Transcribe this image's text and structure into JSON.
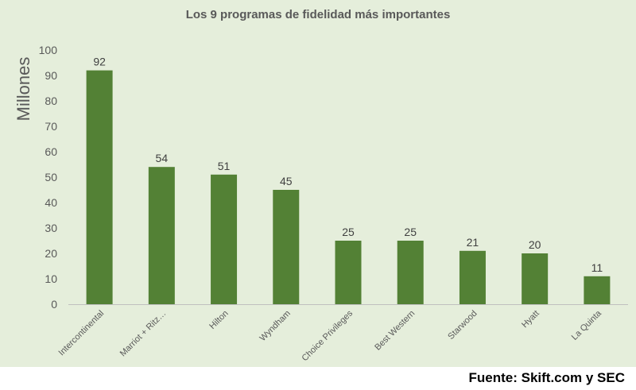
{
  "chart_data": {
    "type": "bar",
    "title": "Los 9 programas de fidelidad más importantes",
    "ylabel": "Millones",
    "xlabel": "",
    "categories": [
      "Intercontinental",
      "Marriot + Ritz…",
      "Hilton",
      "Wyndham",
      "Choice Privileges",
      "Best Western",
      "Starwood",
      "Hyatt",
      "La Quinta"
    ],
    "values": [
      92,
      54,
      51,
      45,
      25,
      25,
      21,
      20,
      11
    ],
    "ylim": [
      0,
      100
    ],
    "yticks": [
      0,
      10,
      20,
      30,
      40,
      50,
      60,
      70,
      80,
      90,
      100
    ],
    "bar_color": "#538135",
    "grid": false,
    "legend": false
  },
  "source": "Fuente: Skift.com y SEC",
  "colors": {
    "panel_background": "#e5eedb",
    "bar": "#538135",
    "text": "#595959"
  }
}
